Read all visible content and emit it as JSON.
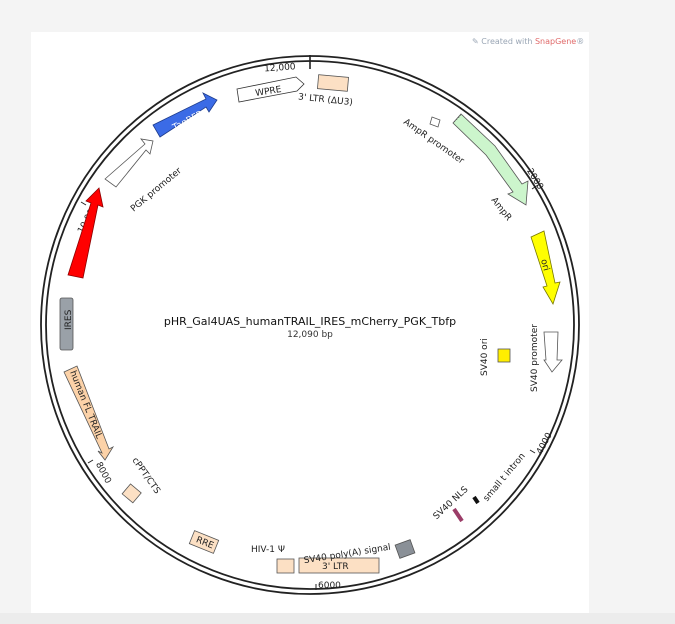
{
  "credit": {
    "prefix": "Created with ",
    "brand": "SnapGene",
    "mark": "®"
  },
  "plasmid": {
    "name": "pHR_Gal4UAS_humanTRAIL_IRES_mCherry_PGK_Tbfp",
    "length_label": "12,090 bp"
  },
  "ticks": [
    "12,000",
    "2000",
    "4000",
    "6000",
    "8000",
    "10,000"
  ],
  "features": {
    "wpre": "WPRE",
    "ltr3_du3": "3' LTR (ΔU3)",
    "ampr_promoter": "AmpR promoter",
    "ampr": "AmpR",
    "ori": "ori",
    "sv40_promoter": "SV40 promoter",
    "sv40_ori": "SV40 ori",
    "small_t_intron": "small t intron",
    "sv40_nls": "SV40 NLS",
    "sv40_polya": "SV40 poly(A) signal",
    "ltr3": "3' LTR",
    "hiv1_psi": "HIV-1 Ψ",
    "rre": "RRE",
    "cppt_cts": "cPPT/CTS",
    "human_fl_trail": "human FL TRAIL",
    "ires": "IRES",
    "mcherry": "mCherry",
    "pgk_promoter": "PGK promoter",
    "tagbfp": "TagBFP"
  },
  "colors": {
    "wpre": "#ffffff",
    "ltr": "#fce0c4",
    "ampr_promoter": "#ffffff",
    "ampr": "#ccf5cc",
    "ori": "#ffff00",
    "sv40_promoter": "#ffffff",
    "sv40_ori": "#ffee00",
    "small_t_intron": "#111111",
    "sv40_nls": "#9b3d68",
    "polya": "#8a9097",
    "rre": "#fce0c4",
    "cppt": "#fce0c4",
    "trail": "#fcd2a8",
    "ires": "#9aa1a8",
    "mcherry": "#ff0000",
    "pgk": "#ffffff",
    "tagbfp": "#3b6be6",
    "backbone": "#222222",
    "credit_brand": "#e06a6a"
  }
}
